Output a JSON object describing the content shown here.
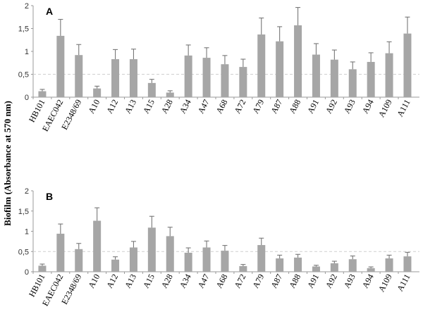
{
  "y_axis_title": "Biofilm (Absorbance at 570 nm)",
  "chart_data": [
    {
      "type": "bar",
      "panel": "A",
      "categories": [
        "HB101",
        "EAEC042",
        "E2348/69",
        "A10",
        "A12",
        "A13",
        "A15",
        "A28",
        "A34",
        "A47",
        "A68",
        "A72",
        "A79",
        "A87",
        "A88",
        "A91",
        "A92",
        "A93",
        "A94",
        "A109",
        "A111"
      ],
      "values": [
        0.13,
        1.34,
        0.92,
        0.19,
        0.83,
        0.83,
        0.31,
        0.1,
        0.91,
        0.86,
        0.72,
        0.66,
        1.37,
        1.22,
        1.57,
        0.93,
        0.82,
        0.61,
        0.77,
        0.96,
        1.39
      ],
      "errors": [
        0.04,
        0.36,
        0.23,
        0.05,
        0.21,
        0.22,
        0.08,
        0.04,
        0.23,
        0.22,
        0.19,
        0.17,
        0.36,
        0.32,
        0.39,
        0.24,
        0.21,
        0.16,
        0.2,
        0.25,
        0.36
      ],
      "ylim": [
        0,
        2
      ],
      "yticks": [
        0,
        0.5,
        1,
        1.5,
        2
      ],
      "ytick_labels": [
        "0",
        "0,5",
        "1",
        "1,5",
        "2"
      ],
      "reference_line": 0.5,
      "grid": false
    },
    {
      "type": "bar",
      "panel": "B",
      "categories": [
        "HB101",
        "EAEC042",
        "E2348/69",
        "A10",
        "A12",
        "A13",
        "A15",
        "A28",
        "A34",
        "A47",
        "A68",
        "A72",
        "A79",
        "A87",
        "A88",
        "A91",
        "A92",
        "A93",
        "A94",
        "A109",
        "A111"
      ],
      "values": [
        0.15,
        0.94,
        0.56,
        1.26,
        0.3,
        0.6,
        1.09,
        0.88,
        0.47,
        0.6,
        0.52,
        0.14,
        0.66,
        0.33,
        0.35,
        0.13,
        0.21,
        0.31,
        0.09,
        0.33,
        0.38
      ],
      "errors": [
        0.04,
        0.24,
        0.14,
        0.32,
        0.07,
        0.15,
        0.28,
        0.22,
        0.12,
        0.16,
        0.13,
        0.04,
        0.17,
        0.08,
        0.08,
        0.03,
        0.05,
        0.08,
        0.03,
        0.08,
        0.1
      ],
      "ylim": [
        0,
        2
      ],
      "yticks": [
        0,
        0.5,
        1,
        1.5,
        2
      ],
      "ytick_labels": [
        "0",
        "0,5",
        "1",
        "1,5",
        "2"
      ],
      "reference_line": 0.5,
      "grid": false
    }
  ]
}
